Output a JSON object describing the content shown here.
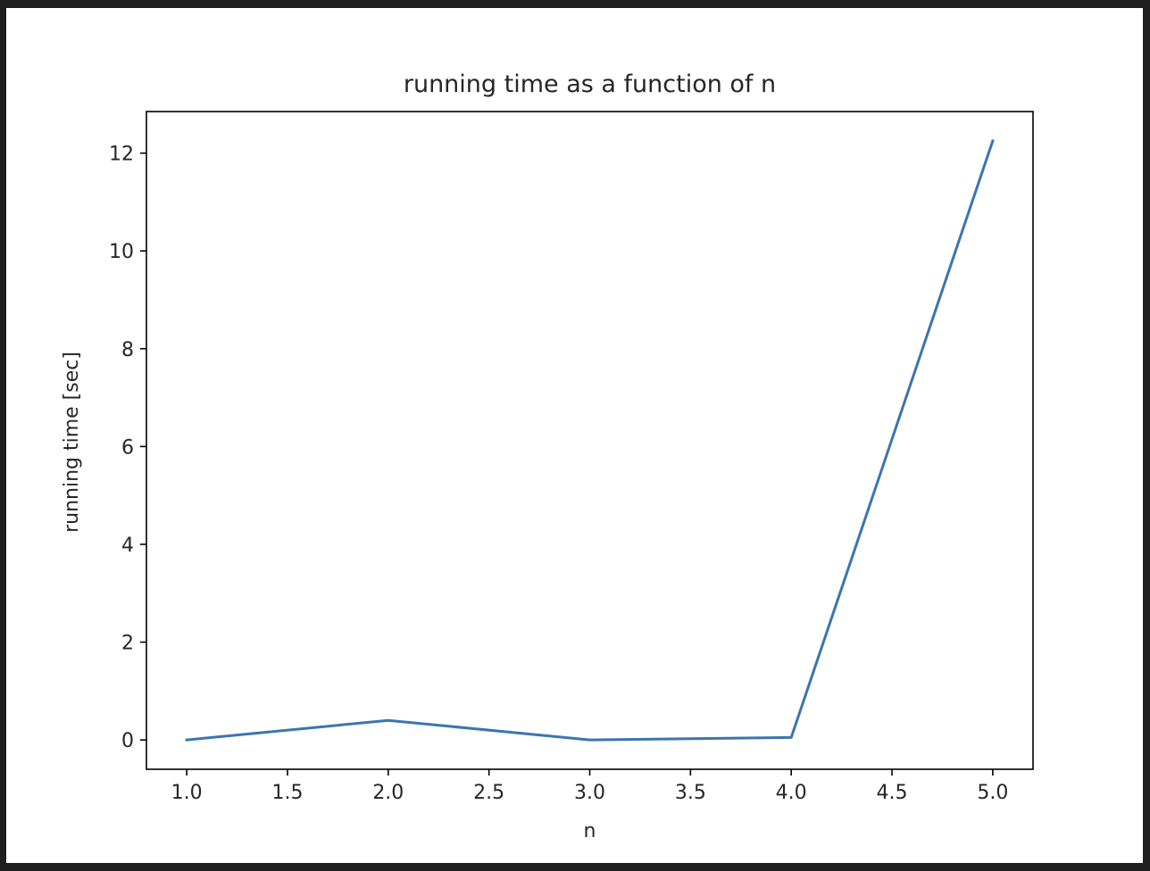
{
  "page": {
    "background_color": "#1e1e1e",
    "figure_color": "#ffffff"
  },
  "chart_data": {
    "type": "line",
    "title": "running time as a function of n",
    "xlabel": "n",
    "ylabel": "running time [sec]",
    "x": [
      1,
      2,
      3,
      4,
      5
    ],
    "series": [
      {
        "values": [
          0.0,
          0.4,
          0.0,
          0.05,
          12.25
        ],
        "color": "#3b75af"
      }
    ],
    "xlim": [
      0.8,
      5.2
    ],
    "ylim": [
      -0.6,
      12.85
    ],
    "xticks": [
      1.0,
      1.5,
      2.0,
      2.5,
      3.0,
      3.5,
      4.0,
      4.5,
      5.0
    ],
    "xtick_labels": [
      "1.0",
      "1.5",
      "2.0",
      "2.5",
      "3.0",
      "3.5",
      "4.0",
      "4.5",
      "5.0"
    ],
    "yticks": [
      0,
      2,
      4,
      6,
      8,
      10,
      12
    ],
    "ytick_labels": [
      "0",
      "2",
      "4",
      "6",
      "8",
      "10",
      "12"
    ],
    "grid": false,
    "legend": "none"
  }
}
